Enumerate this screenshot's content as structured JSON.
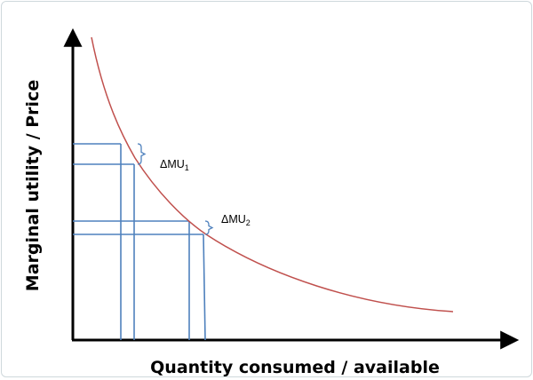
{
  "chart_data": {
    "type": "line",
    "title": "",
    "xlabel": "Quantity consumed / available",
    "ylabel": "Marginal utility / Price",
    "x_ticks": [],
    "y_ticks": [],
    "grid": false,
    "series": [
      {
        "color": "#c0504d",
        "curve": "downward-sloping (convex)",
        "points": [
          [
            0.2,
            1.0
          ],
          [
            0.5,
            0.42
          ],
          [
            1.0,
            0.22
          ],
          [
            2.0,
            0.11
          ],
          [
            3.0,
            0.08
          ],
          [
            4.0,
            0.06
          ]
        ]
      }
    ],
    "annotations": [
      {
        "id": "dmu1",
        "label_main": "ΔMU",
        "label_sub": "1"
      },
      {
        "id": "dmu2",
        "label_main": "ΔMU",
        "label_sub": "2"
      }
    ],
    "guide_color": "#4f81bd",
    "axis_color": "#000000"
  }
}
